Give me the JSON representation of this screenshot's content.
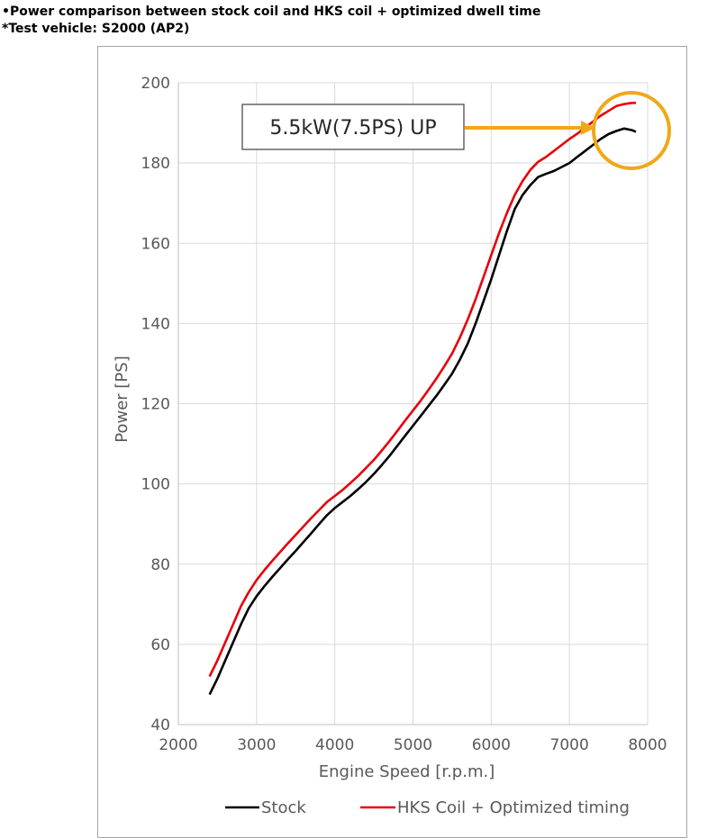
{
  "captions": {
    "line1": "•Power comparison between stock coil and HKS coil + optimized dwell time",
    "line2": "*Test vehicle: S2000 (AP2)"
  },
  "chart_data": {
    "type": "line",
    "xlabel": "Engine Speed [r.p.m.]",
    "ylabel": "Power [PS]",
    "xlim": [
      2000,
      8000
    ],
    "ylim": [
      40,
      200
    ],
    "xticks": [
      2000,
      3000,
      4000,
      5000,
      6000,
      7000,
      8000
    ],
    "yticks": [
      40,
      60,
      80,
      100,
      120,
      140,
      160,
      180,
      200
    ],
    "grid": true,
    "legend_position": "bottom",
    "annotation": {
      "text": "5.5kW(7.5PS) UP",
      "color": "#f0a818"
    },
    "series": [
      {
        "name": "Stock",
        "color": "#000000",
        "x": [
          2400,
          2500,
          2600,
          2700,
          2800,
          2900,
          3000,
          3100,
          3200,
          3300,
          3400,
          3500,
          3600,
          3700,
          3800,
          3900,
          4000,
          4100,
          4200,
          4300,
          4400,
          4500,
          4600,
          4700,
          4800,
          4900,
          5000,
          5100,
          5200,
          5300,
          5400,
          5500,
          5600,
          5700,
          5800,
          5900,
          6000,
          6100,
          6200,
          6300,
          6400,
          6500,
          6600,
          6700,
          6800,
          6900,
          7000,
          7100,
          7200,
          7300,
          7400,
          7500,
          7600,
          7700,
          7800,
          7850
        ],
        "y": [
          47.5,
          51.5,
          56,
          60.5,
          65,
          69,
          72,
          74.5,
          76.8,
          79,
          81.2,
          83.3,
          85.5,
          87.7,
          90,
          92.2,
          94,
          95.5,
          97,
          98.7,
          100.5,
          102.5,
          104.7,
          107,
          109.5,
          112,
          114.5,
          117,
          119.5,
          122,
          124.7,
          127.5,
          131,
          135,
          140,
          145.5,
          151,
          157,
          163,
          168.5,
          172,
          174.5,
          176.5,
          177.3,
          178,
          179,
          180,
          181.5,
          183,
          184.5,
          186,
          187.2,
          188,
          188.6,
          188.2,
          187.8
        ]
      },
      {
        "name": "HKS Coil + Optimized timing",
        "color": "#e8000a",
        "x": [
          2400,
          2500,
          2600,
          2700,
          2800,
          2900,
          3000,
          3100,
          3200,
          3300,
          3400,
          3500,
          3600,
          3700,
          3800,
          3900,
          4000,
          4100,
          4200,
          4300,
          4400,
          4500,
          4600,
          4700,
          4800,
          4900,
          5000,
          5100,
          5200,
          5300,
          5400,
          5500,
          5600,
          5700,
          5800,
          5900,
          6000,
          6100,
          6200,
          6300,
          6400,
          6500,
          6600,
          6700,
          6800,
          6900,
          7000,
          7100,
          7200,
          7300,
          7400,
          7500,
          7600,
          7700,
          7800,
          7850
        ],
        "y": [
          52,
          56,
          60.5,
          65,
          69.5,
          73,
          76,
          78.5,
          80.8,
          83,
          85.2,
          87.3,
          89.4,
          91.5,
          93.5,
          95.5,
          97,
          98.5,
          100.2,
          102,
          104,
          106,
          108.3,
          110.7,
          113.2,
          115.8,
          118.3,
          120.8,
          123.5,
          126.3,
          129.3,
          132.5,
          136.5,
          141,
          146,
          151.5,
          157,
          162.5,
          167.5,
          172,
          175.5,
          178.3,
          180.3,
          181.5,
          183,
          184.5,
          186,
          187.3,
          188.8,
          190.3,
          191.8,
          193,
          194.2,
          194.7,
          195,
          195
        ]
      }
    ]
  }
}
